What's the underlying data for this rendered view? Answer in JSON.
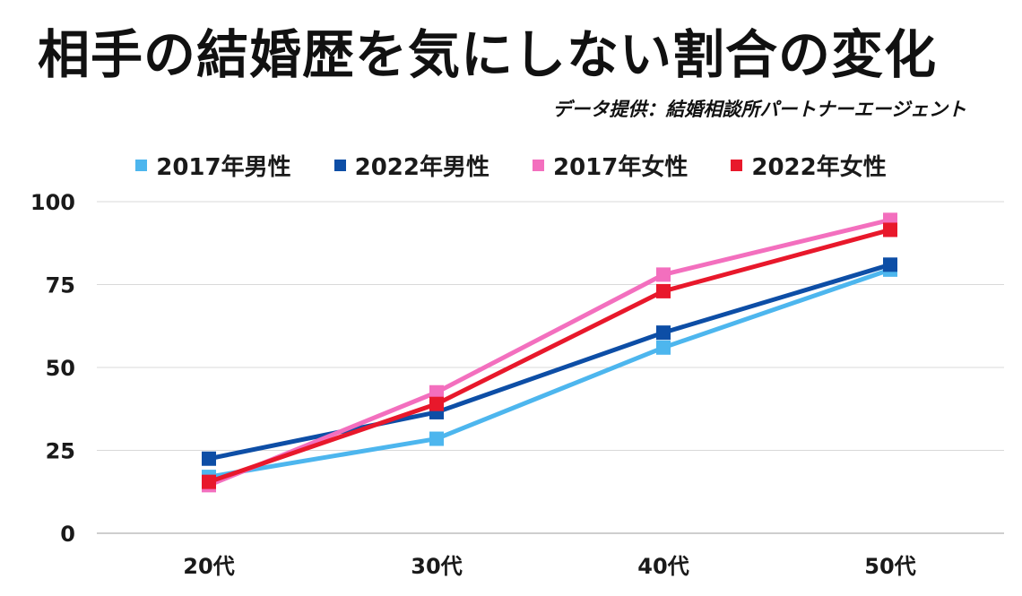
{
  "title": "相手の結婚歴を気にしない割合の変化",
  "source": "データ提供：結婚相談所パートナーエージェント",
  "chart_data": {
    "type": "line",
    "title": "相手の結婚歴を気にしない割合の変化",
    "categories": [
      "20代",
      "30代",
      "40代",
      "50代"
    ],
    "ylim": [
      0,
      100
    ],
    "yticks": [
      0,
      25,
      50,
      75,
      100
    ],
    "grid": true,
    "legend_position": "top",
    "xlabel": "",
    "ylabel": "",
    "series": [
      {
        "name": "2017年男性",
        "color": "#4db6ee",
        "values": [
          17,
          28.5,
          56,
          79.5
        ]
      },
      {
        "name": "2022年男性",
        "color": "#0d4ea6",
        "values": [
          22.5,
          36.5,
          60.5,
          81
        ]
      },
      {
        "name": "2017年女性",
        "color": "#f36fbe",
        "values": [
          14.5,
          42.5,
          78,
          94.5
        ]
      },
      {
        "name": "2022年女性",
        "color": "#e8182b",
        "values": [
          15.5,
          39,
          73,
          91.5
        ]
      }
    ]
  }
}
